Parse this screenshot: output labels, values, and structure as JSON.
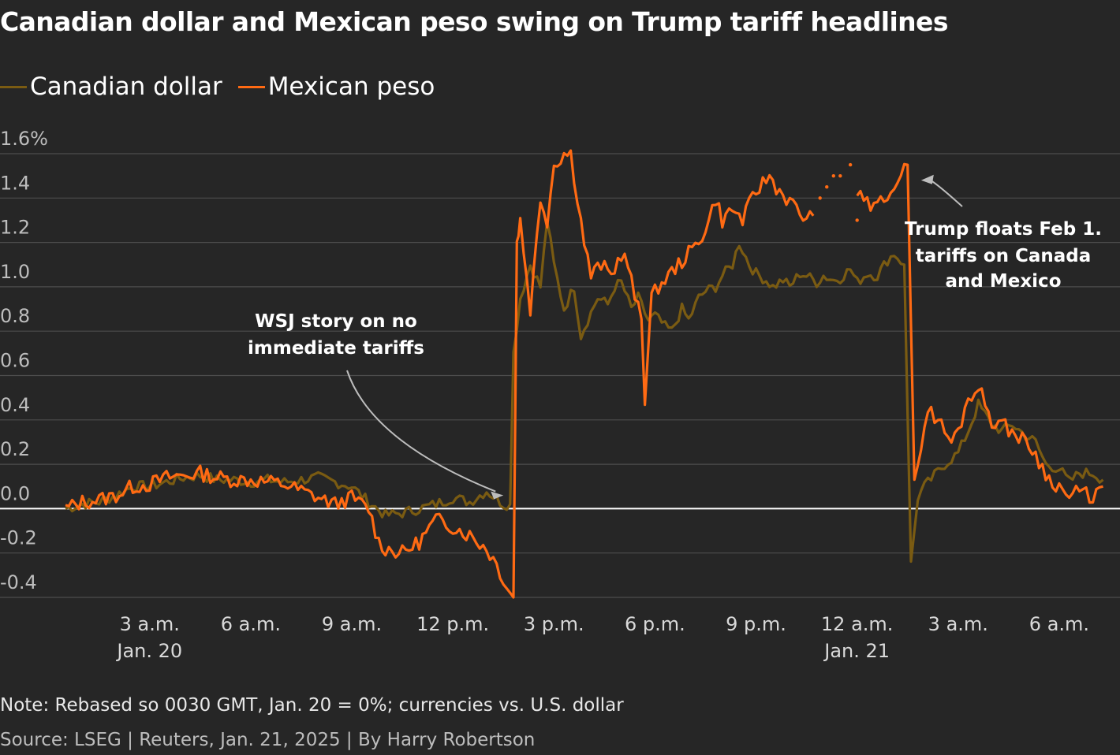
{
  "chart_data": {
    "type": "line",
    "title": "Canadian dollar and Mexican peso swing on Trump tariff headlines",
    "ylabel": "",
    "xlabel": "",
    "ylim": [
      -0.4,
      1.6
    ],
    "yticks": [
      -0.4,
      -0.2,
      0.0,
      0.2,
      0.4,
      0.6,
      0.8,
      1.0,
      1.2,
      1.4,
      1.6
    ],
    "ytick_labels": [
      "-0.4",
      "-0.2",
      "0.0",
      "0.2",
      "0.4",
      "0.6",
      "0.8",
      "1.0",
      "1.2",
      "1.4",
      "1.6%"
    ],
    "xlim": [
      0.5,
      31.5
    ],
    "xticks": [
      {
        "x": 3,
        "line1": "3 a.m.",
        "line2": "Jan. 20"
      },
      {
        "x": 6,
        "line1": "6 a.m.",
        "line2": ""
      },
      {
        "x": 9,
        "line1": "9 a.m.",
        "line2": ""
      },
      {
        "x": 12,
        "line1": "12 p.m.",
        "line2": ""
      },
      {
        "x": 15,
        "line1": "3 p.m.",
        "line2": ""
      },
      {
        "x": 18,
        "line1": "6 p.m.",
        "line2": ""
      },
      {
        "x": 21,
        "line1": "9 p.m.",
        "line2": ""
      },
      {
        "x": 24,
        "line1": "12 a.m.",
        "line2": "Jan. 21"
      },
      {
        "x": 27,
        "line1": "3 a.m.",
        "line2": ""
      },
      {
        "x": 30,
        "line1": "6 a.m.",
        "line2": ""
      }
    ],
    "grid": true,
    "legend_position": "top-left",
    "series": [
      {
        "name": "Canadian dollar",
        "color": "#7a5b12",
        "points": [
          [
            0.5,
            0.0
          ],
          [
            1.0,
            0.02
          ],
          [
            1.5,
            0.03
          ],
          [
            2.0,
            0.06
          ],
          [
            2.5,
            0.1
          ],
          [
            3.0,
            0.1
          ],
          [
            3.5,
            0.12
          ],
          [
            4.0,
            0.14
          ],
          [
            4.5,
            0.15
          ],
          [
            5.0,
            0.13
          ],
          [
            5.5,
            0.13
          ],
          [
            6.0,
            0.12
          ],
          [
            6.5,
            0.13
          ],
          [
            7.0,
            0.12
          ],
          [
            7.5,
            0.13
          ],
          [
            8.0,
            0.14
          ],
          [
            8.5,
            0.12
          ],
          [
            9.0,
            0.1
          ],
          [
            9.5,
            0.03
          ],
          [
            10.0,
            -0.03
          ],
          [
            10.5,
            -0.02
          ],
          [
            11.0,
            0.0
          ],
          [
            11.5,
            0.02
          ],
          [
            12.0,
            0.05
          ],
          [
            12.5,
            0.03
          ],
          [
            13.0,
            0.08
          ],
          [
            13.5,
            0.02
          ],
          [
            13.7,
            0.02
          ],
          [
            13.8,
            0.7
          ],
          [
            14.0,
            0.95
          ],
          [
            14.3,
            1.1
          ],
          [
            14.6,
            1.0
          ],
          [
            14.8,
            1.3
          ],
          [
            15.0,
            1.1
          ],
          [
            15.3,
            0.9
          ],
          [
            15.6,
            1.0
          ],
          [
            15.8,
            0.78
          ],
          [
            16.0,
            0.85
          ],
          [
            16.3,
            0.95
          ],
          [
            16.6,
            0.92
          ],
          [
            16.8,
            1.0
          ],
          [
            17.0,
            1.02
          ],
          [
            17.3,
            0.9
          ],
          [
            17.5,
            0.95
          ],
          [
            17.8,
            0.85
          ],
          [
            18.0,
            0.87
          ],
          [
            18.3,
            0.82
          ],
          [
            18.5,
            0.8
          ],
          [
            18.8,
            0.9
          ],
          [
            19.0,
            0.85
          ],
          [
            19.3,
            0.95
          ],
          [
            19.5,
            0.98
          ],
          [
            19.8,
            1.0
          ],
          [
            20.0,
            1.05
          ],
          [
            20.3,
            1.1
          ],
          [
            20.5,
            1.2
          ],
          [
            20.8,
            1.1
          ],
          [
            21.0,
            1.06
          ],
          [
            21.3,
            1.03
          ],
          [
            21.5,
            1.0
          ],
          [
            21.8,
            1.03
          ],
          [
            22.0,
            1.0
          ],
          [
            22.3,
            1.06
          ],
          [
            22.5,
            1.05
          ],
          [
            22.8,
            1.02
          ],
          [
            23.0,
            1.05
          ],
          [
            23.3,
            1.03
          ],
          [
            23.5,
            1.04
          ],
          [
            23.8,
            1.08
          ],
          [
            24.0,
            1.02
          ],
          [
            24.3,
            1.06
          ],
          [
            24.6,
            1.05
          ],
          [
            24.9,
            1.12
          ],
          [
            25.1,
            1.15
          ],
          [
            25.4,
            1.1
          ],
          [
            25.6,
            -0.25
          ],
          [
            25.8,
            0.05
          ],
          [
            26.0,
            0.1
          ],
          [
            26.3,
            0.15
          ],
          [
            26.6,
            0.2
          ],
          [
            27.0,
            0.25
          ],
          [
            27.3,
            0.35
          ],
          [
            27.6,
            0.47
          ],
          [
            28.0,
            0.38
          ],
          [
            28.3,
            0.35
          ],
          [
            28.6,
            0.38
          ],
          [
            29.0,
            0.33
          ],
          [
            29.3,
            0.3
          ],
          [
            29.6,
            0.2
          ],
          [
            30.0,
            0.18
          ],
          [
            30.3,
            0.12
          ],
          [
            30.6,
            0.16
          ],
          [
            31.0,
            0.16
          ],
          [
            31.3,
            0.13
          ]
        ]
      },
      {
        "name": "Mexican peso",
        "color": "#ff6a13",
        "points": [
          [
            0.5,
            0.0
          ],
          [
            1.0,
            0.03
          ],
          [
            1.5,
            0.04
          ],
          [
            2.0,
            0.06
          ],
          [
            2.5,
            0.1
          ],
          [
            3.0,
            0.11
          ],
          [
            3.5,
            0.14
          ],
          [
            4.0,
            0.15
          ],
          [
            4.5,
            0.16
          ],
          [
            5.0,
            0.14
          ],
          [
            5.5,
            0.13
          ],
          [
            6.0,
            0.13
          ],
          [
            6.5,
            0.12
          ],
          [
            7.0,
            0.11
          ],
          [
            7.5,
            0.08
          ],
          [
            8.0,
            0.05
          ],
          [
            8.5,
            0.02
          ],
          [
            9.0,
            0.05
          ],
          [
            9.5,
            0.0
          ],
          [
            9.8,
            -0.15
          ],
          [
            10.0,
            -0.18
          ],
          [
            10.5,
            -0.2
          ],
          [
            11.0,
            -0.15
          ],
          [
            11.5,
            -0.05
          ],
          [
            12.0,
            -0.08
          ],
          [
            12.5,
            -0.12
          ],
          [
            13.0,
            -0.18
          ],
          [
            13.3,
            -0.25
          ],
          [
            13.6,
            -0.35
          ],
          [
            13.8,
            -0.4
          ],
          [
            13.9,
            1.2
          ],
          [
            14.0,
            1.3
          ],
          [
            14.3,
            0.9
          ],
          [
            14.6,
            1.4
          ],
          [
            14.8,
            1.3
          ],
          [
            15.0,
            1.55
          ],
          [
            15.3,
            1.6
          ],
          [
            15.5,
            1.6
          ],
          [
            15.7,
            1.4
          ],
          [
            15.9,
            1.2
          ],
          [
            16.1,
            1.05
          ],
          [
            16.4,
            1.1
          ],
          [
            16.7,
            1.05
          ],
          [
            17.0,
            1.15
          ],
          [
            17.2,
            1.1
          ],
          [
            17.4,
            0.95
          ],
          [
            17.6,
            0.85
          ],
          [
            17.7,
            0.5
          ],
          [
            17.9,
            0.95
          ],
          [
            18.1,
            1.0
          ],
          [
            18.4,
            1.05
          ],
          [
            18.7,
            1.1
          ],
          [
            19.0,
            1.15
          ],
          [
            19.3,
            1.2
          ],
          [
            19.6,
            1.3
          ],
          [
            19.8,
            1.4
          ],
          [
            20.0,
            1.3
          ],
          [
            20.3,
            1.35
          ],
          [
            20.6,
            1.3
          ],
          [
            20.9,
            1.4
          ],
          [
            21.1,
            1.45
          ],
          [
            21.4,
            1.5
          ],
          [
            21.6,
            1.45
          ],
          [
            21.9,
            1.4
          ],
          [
            22.2,
            1.35
          ],
          [
            22.5,
            1.3
          ],
          [
            22.7,
            1.32
          ]
        ],
        "points_after_gap": [
          [
            24.0,
            1.42
          ],
          [
            24.2,
            1.38
          ],
          [
            24.5,
            1.35
          ],
          [
            24.8,
            1.4
          ],
          [
            25.0,
            1.45
          ],
          [
            25.3,
            1.5
          ],
          [
            25.5,
            1.55
          ],
          [
            25.7,
            0.1
          ],
          [
            25.9,
            0.3
          ],
          [
            26.1,
            0.45
          ],
          [
            26.4,
            0.4
          ],
          [
            26.8,
            0.3
          ],
          [
            27.0,
            0.35
          ],
          [
            27.3,
            0.5
          ],
          [
            27.6,
            0.55
          ],
          [
            28.0,
            0.4
          ],
          [
            28.3,
            0.38
          ],
          [
            28.6,
            0.35
          ],
          [
            29.0,
            0.3
          ],
          [
            29.3,
            0.25
          ],
          [
            29.6,
            0.15
          ],
          [
            30.0,
            0.1
          ],
          [
            30.3,
            0.05
          ],
          [
            30.6,
            0.08
          ],
          [
            31.0,
            0.05
          ],
          [
            31.3,
            0.1
          ]
        ]
      }
    ],
    "annotations": [
      {
        "lines": [
          "WSJ story on no",
          "immediate tariffs"
        ],
        "points_to": [
          13.5,
          0.06
        ]
      },
      {
        "lines": [
          "Trump floats Feb 1.",
          "tariffs on Canada",
          "and Mexico"
        ],
        "points_to": [
          25.9,
          1.48
        ]
      }
    ]
  },
  "footer": {
    "note": "Note: Rebased so 0030 GMT, Jan. 20 = 0%; currencies vs. U.S. dollar",
    "source": "Source: LSEG | Reuters, Jan. 21, 2025 | By Harry Robertson"
  }
}
